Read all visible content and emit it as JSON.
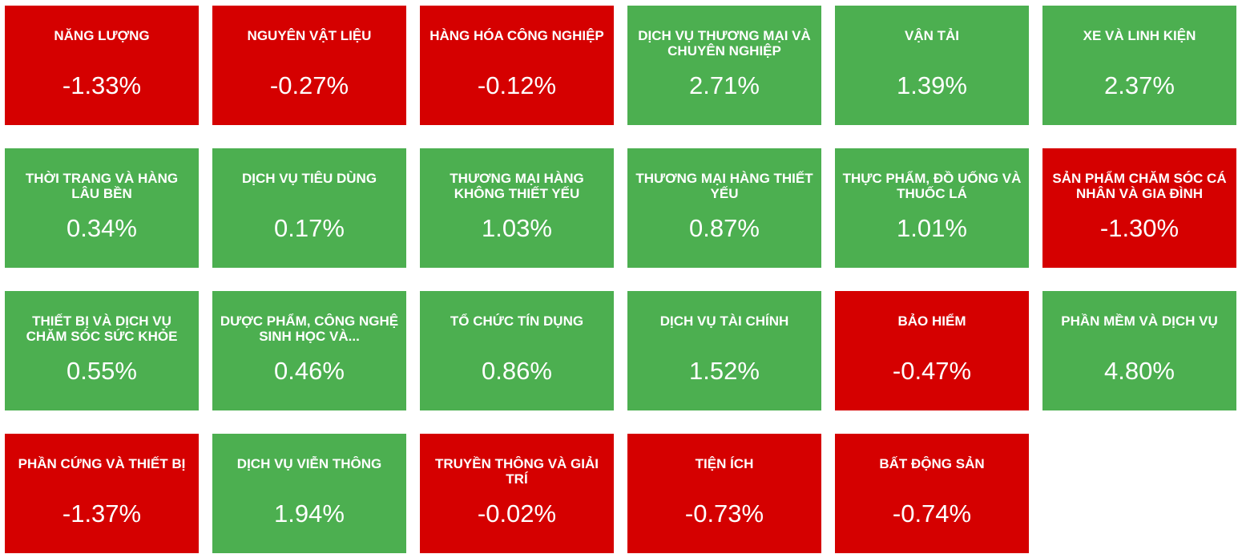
{
  "colors": {
    "positive": "#4caf50",
    "negative": "#d50000",
    "text": "#ffffff"
  },
  "sectors": [
    {
      "name": "NĂNG LƯỢNG",
      "change": "-1.33%",
      "trend": "down"
    },
    {
      "name": "NGUYÊN VẬT LIỆU",
      "change": "-0.27%",
      "trend": "down"
    },
    {
      "name": "HÀNG HÓA CÔNG NGHIỆP",
      "change": "-0.12%",
      "trend": "down"
    },
    {
      "name": "DỊCH VỤ THƯƠNG MẠI VÀ CHUYÊN NGHIỆP",
      "change": "2.71%",
      "trend": "up"
    },
    {
      "name": "VẬN TẢI",
      "change": "1.39%",
      "trend": "up"
    },
    {
      "name": "XE VÀ LINH KIỆN",
      "change": "2.37%",
      "trend": "up"
    },
    {
      "name": "THỜI TRANG VÀ HÀNG LÂU BỀN",
      "change": "0.34%",
      "trend": "up"
    },
    {
      "name": "DỊCH VỤ TIÊU DÙNG",
      "change": "0.17%",
      "trend": "up"
    },
    {
      "name": "THƯƠNG MẠI HÀNG KHÔNG THIẾT YẾU",
      "change": "1.03%",
      "trend": "up"
    },
    {
      "name": "THƯƠNG MẠI HÀNG THIẾT YẾU",
      "change": "0.87%",
      "trend": "up"
    },
    {
      "name": "THỰC PHẨM, ĐỒ UỐNG VÀ THUỐC LÁ",
      "change": "1.01%",
      "trend": "up"
    },
    {
      "name": "SẢN PHẨM CHĂM SÓC CÁ NHÂN VÀ GIA ĐÌNH",
      "change": "-1.30%",
      "trend": "down"
    },
    {
      "name": "THIẾT BỊ VÀ DỊCH VỤ CHĂM SÓC SỨC KHỎE",
      "change": "0.55%",
      "trend": "up"
    },
    {
      "name": "DƯỢC PHẨM, CÔNG NGHỆ SINH HỌC VÀ...",
      "change": "0.46%",
      "trend": "up"
    },
    {
      "name": "TỔ CHỨC TÍN DỤNG",
      "change": "0.86%",
      "trend": "up"
    },
    {
      "name": "DỊCH VỤ TÀI CHÍNH",
      "change": "1.52%",
      "trend": "up"
    },
    {
      "name": "BẢO HIỂM",
      "change": "-0.47%",
      "trend": "down"
    },
    {
      "name": "PHẦN MỀM VÀ DỊCH VỤ",
      "change": "4.80%",
      "trend": "up"
    },
    {
      "name": "PHẦN CỨNG VÀ THIẾT BỊ",
      "change": "-1.37%",
      "trend": "down"
    },
    {
      "name": "DỊCH VỤ VIỄN THÔNG",
      "change": "1.94%",
      "trend": "up"
    },
    {
      "name": "TRUYỀN THÔNG VÀ GIẢI TRÍ",
      "change": "-0.02%",
      "trend": "down"
    },
    {
      "name": "TIỆN ÍCH",
      "change": "-0.73%",
      "trend": "down"
    },
    {
      "name": "BẤT ĐỘNG SẢN",
      "change": "-0.74%",
      "trend": "down"
    }
  ]
}
